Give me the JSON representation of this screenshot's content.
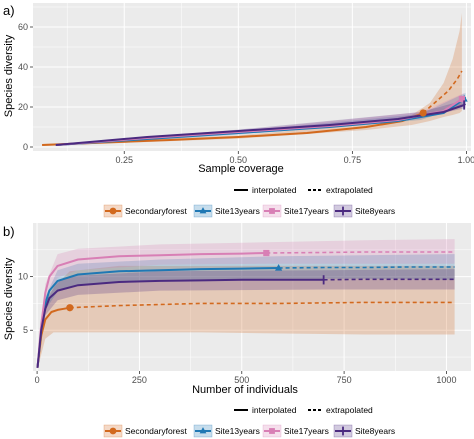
{
  "colors": {
    "Secondaryforest": "#d2691e",
    "Site13years": "#1f78b4",
    "Site17years": "#d87fb5",
    "Site8years": "#4b2a80",
    "panel_bg": "#ebebeb",
    "grid": "#ffffff"
  },
  "legend": {
    "line_types": [
      "interpolated",
      "extrapolated"
    ],
    "sites": [
      "Secondaryforest",
      "Site13years",
      "Site17years",
      "Site8years"
    ],
    "marker_icons": [
      "circle-icon",
      "triangle-icon",
      "square-icon",
      "bar-icon"
    ]
  },
  "chart_data": [
    {
      "panel": "a)",
      "type": "line",
      "xlabel": "Sample coverage",
      "ylabel": "Species diversity",
      "xlim": [
        0.05,
        1.01
      ],
      "ylim": [
        -2,
        72
      ],
      "xticks": [
        0.25,
        0.5,
        0.75,
        1.0
      ],
      "xtick_labels": [
        "0.25",
        "0.50",
        "0.75",
        "1.00"
      ],
      "yticks": [
        0,
        20,
        40,
        60
      ],
      "ytick_labels": [
        "0",
        "20",
        "40",
        "60"
      ],
      "grid": true,
      "series": [
        {
          "name": "Secondaryforest",
          "marker": "circle",
          "interpolated": {
            "x": [
              0.07,
              0.2,
              0.35,
              0.5,
              0.65,
              0.78,
              0.86,
              0.905
            ],
            "y": [
              1,
              2.2,
              3.5,
              5,
              7,
              10,
              13,
              17
            ]
          },
          "extrapolated": {
            "x": [
              0.905,
              0.93,
              0.96,
              0.98,
              0.99
            ],
            "y": [
              17,
              22,
              28,
              34,
              38
            ]
          },
          "observed": {
            "x": 0.905,
            "y": 17
          },
          "band": {
            "x": [
              0.07,
              0.5,
              0.78,
              0.88,
              0.92,
              0.95,
              0.97,
              0.985,
              0.99
            ],
            "lower": [
              0.5,
              4.2,
              8.5,
              11,
              13,
              15,
              16,
              17,
              18
            ],
            "upper": [
              1.5,
              5.8,
              11.5,
              16,
              22,
              32,
              44,
              58,
              67
            ]
          }
        },
        {
          "name": "Site13years",
          "marker": "triangle",
          "interpolated": {
            "x": [
              0.1,
              0.3,
              0.5,
              0.7,
              0.85,
              0.95,
              0.995
            ],
            "y": [
              1,
              4,
              7,
              10,
              13,
              17,
              24
            ]
          },
          "extrapolated": {
            "x": [
              0.995,
              0.998
            ],
            "y": [
              24,
              25
            ]
          },
          "observed": {
            "x": 0.995,
            "y": 24
          },
          "band": {
            "x": [
              0.1,
              0.5,
              0.9,
              0.998
            ],
            "lower": [
              0.5,
              6.2,
              13.5,
              21
            ],
            "upper": [
              1.5,
              7.8,
              16.5,
              27
            ]
          }
        },
        {
          "name": "Site17years",
          "marker": "square",
          "interpolated": {
            "x": [
              0.1,
              0.3,
              0.5,
              0.7,
              0.85,
              0.95,
              0.99
            ],
            "y": [
              1,
              4.5,
              7.5,
              10.5,
              13.5,
              18,
              24
            ]
          },
          "extrapolated": {
            "x": [
              0.99,
              0.995
            ],
            "y": [
              24,
              25
            ]
          },
          "observed": {
            "x": 0.99,
            "y": 24
          },
          "band": {
            "x": [
              0.1,
              0.5,
              0.9,
              0.995
            ],
            "lower": [
              0.5,
              6.8,
              14,
              21.5
            ],
            "upper": [
              1.5,
              8.2,
              17.5,
              27
            ]
          }
        },
        {
          "name": "Site8years",
          "marker": "bar",
          "interpolated": {
            "x": [
              0.1,
              0.3,
              0.5,
              0.7,
              0.85,
              0.95,
              0.995
            ],
            "y": [
              1,
              5,
              8,
              11,
              14,
              17.5,
              21
            ]
          },
          "extrapolated": {
            "x": [
              0.995,
              0.998
            ],
            "y": [
              21,
              21.5
            ]
          },
          "observed": {
            "x": 0.995,
            "y": 21
          },
          "band": {
            "x": [
              0.1,
              0.5,
              0.9,
              0.998
            ],
            "lower": [
              0.5,
              7.3,
              14.5,
              19.5
            ],
            "upper": [
              1.5,
              8.7,
              17.5,
              23.5
            ]
          }
        }
      ]
    },
    {
      "panel": "b)",
      "type": "line",
      "xlabel": "Number of individuals",
      "ylabel": "Species diversity",
      "xlim": [
        -10,
        1060
      ],
      "ylim": [
        1.2,
        15
      ],
      "xticks": [
        0,
        250,
        500,
        750,
        1000
      ],
      "xtick_labels": [
        "0",
        "250",
        "500",
        "750",
        "1000"
      ],
      "yticks": [
        5,
        10
      ],
      "ytick_labels": [
        "5",
        "10"
      ],
      "grid": true,
      "series": [
        {
          "name": "Secondaryforest",
          "marker": "circle",
          "interpolated": {
            "x": [
              1,
              10,
              20,
              35,
              50,
              65,
              80
            ],
            "y": [
              1.5,
              4.5,
              6,
              6.7,
              6.9,
              7.0,
              7.1
            ]
          },
          "extrapolated": {
            "x": [
              80,
              200,
              400,
              600,
              800,
              1020
            ],
            "y": [
              7.1,
              7.3,
              7.5,
              7.5,
              7.6,
              7.6
            ]
          },
          "observed": {
            "x": 80,
            "y": 7.1
          },
          "band": {
            "x": [
              1,
              20,
              40,
              80,
              200,
              400,
              600,
              800,
              1020
            ],
            "lower": [
              1.4,
              4.2,
              4.8,
              4.8,
              4.8,
              4.8,
              4.7,
              4.6,
              4.6
            ],
            "upper": [
              1.6,
              7.9,
              9,
              10.5,
              11,
              11,
              11,
              11,
              11
            ]
          }
        },
        {
          "name": "Site13years",
          "marker": "triangle",
          "interpolated": {
            "x": [
              1,
              10,
              20,
              30,
              50,
              100,
              200,
              300,
              400,
              500,
              590
            ],
            "y": [
              1.5,
              5,
              7.5,
              8.7,
              9.6,
              10.2,
              10.5,
              10.6,
              10.7,
              10.75,
              10.8
            ]
          },
          "extrapolated": {
            "x": [
              590,
              700,
              800,
              900,
              1020
            ],
            "y": [
              10.8,
              10.85,
              10.85,
              10.9,
              10.9
            ]
          },
          "observed": {
            "x": 590,
            "y": 10.8
          },
          "band": {
            "x": [
              1,
              20,
              50,
              100,
              300,
              590,
              800,
              1020
            ],
            "lower": [
              1.4,
              6.9,
              8.6,
              9.2,
              9.7,
              9.8,
              9.8,
              9.7
            ],
            "upper": [
              1.6,
              8.1,
              10.6,
              11.2,
              11.6,
              11.9,
              12,
              12.1
            ]
          }
        },
        {
          "name": "Site17years",
          "marker": "square",
          "interpolated": {
            "x": [
              1,
              10,
              20,
              30,
              50,
              100,
              200,
              300,
              400,
              500,
              560
            ],
            "y": [
              1.5,
              5.5,
              8.5,
              10,
              11,
              11.6,
              11.9,
              12.0,
              12.1,
              12.15,
              12.2
            ]
          },
          "extrapolated": {
            "x": [
              560,
              700,
              800,
              900,
              1020
            ],
            "y": [
              12.2,
              12.25,
              12.3,
              12.3,
              12.3
            ]
          },
          "observed": {
            "x": 560,
            "y": 12.2
          },
          "band": {
            "x": [
              1,
              20,
              50,
              100,
              300,
              560,
              800,
              1020
            ],
            "lower": [
              1.4,
              7.7,
              9.9,
              10.6,
              11.1,
              11.2,
              11.2,
              11.2
            ],
            "upper": [
              1.6,
              9.3,
              12.1,
              12.6,
              13,
              13.2,
              13.4,
              13.5
            ]
          }
        },
        {
          "name": "Site8years",
          "marker": "bar",
          "interpolated": {
            "x": [
              1,
              10,
              20,
              30,
              50,
              100,
              200,
              300,
              400,
              500,
              600,
              700
            ],
            "y": [
              1.5,
              5,
              7,
              8,
              8.7,
              9.2,
              9.5,
              9.6,
              9.65,
              9.7,
              9.7,
              9.7
            ]
          },
          "extrapolated": {
            "x": [
              700,
              800,
              900,
              1020
            ],
            "y": [
              9.7,
              9.75,
              9.75,
              9.75
            ]
          },
          "observed": {
            "x": 700,
            "y": 9.7
          },
          "band": {
            "x": [
              1,
              20,
              50,
              100,
              300,
              700,
              1020
            ],
            "lower": [
              1.4,
              6.4,
              7.8,
              8.3,
              8.7,
              8.8,
              8.8
            ],
            "upper": [
              1.6,
              7.6,
              9.6,
              10.1,
              10.5,
              10.6,
              10.7
            ]
          }
        }
      ]
    }
  ]
}
